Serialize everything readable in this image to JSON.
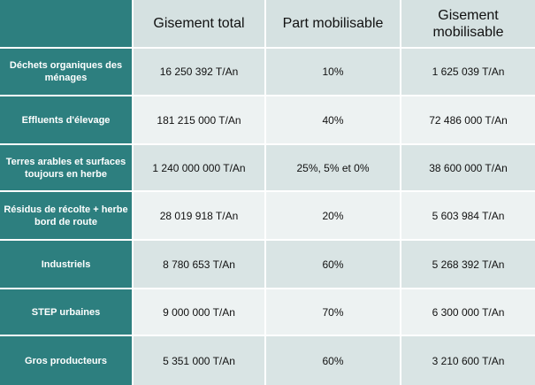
{
  "table": {
    "headers": [
      "Gisement total",
      "Part mobilisable",
      "Gisement mobilisable"
    ],
    "rows": [
      {
        "label": "Déchets organiques des ménages",
        "total": "16 250 392 T/An",
        "part": "10%",
        "mobilisable": "1 625 039 T/An"
      },
      {
        "label": "Effluents d'élevage",
        "total": "181 215 000 T/An",
        "part": "40%",
        "mobilisable": "72 486 000 T/An"
      },
      {
        "label": "Terres arables et surfaces toujours en herbe",
        "total": "1 240 000 000 T/An",
        "part": "25%, 5% et 0%",
        "mobilisable": "38 600 000 T/An"
      },
      {
        "label": "Résidus de récolte + herbe bord de route",
        "total": "28 019 918 T/An",
        "part": "20%",
        "mobilisable": "5 603 984 T/An"
      },
      {
        "label": "Industriels",
        "total": "8 780 653 T/An",
        "part": "60%",
        "mobilisable": "5 268 392 T/An"
      },
      {
        "label": "STEP urbaines",
        "total": "9 000 000 T/An",
        "part": "70%",
        "mobilisable": "6 300 000 T/An"
      },
      {
        "label": "Gros producteurs",
        "total": "5 351 000 T/An",
        "part": "60%",
        "mobilisable": "3 210 600 T/An"
      }
    ]
  },
  "colors": {
    "row_header_bg": "#2d7f7f",
    "header_bg": "#d5e1e1",
    "row_odd_bg": "#d9e4e4",
    "row_even_bg": "#edf2f2"
  }
}
